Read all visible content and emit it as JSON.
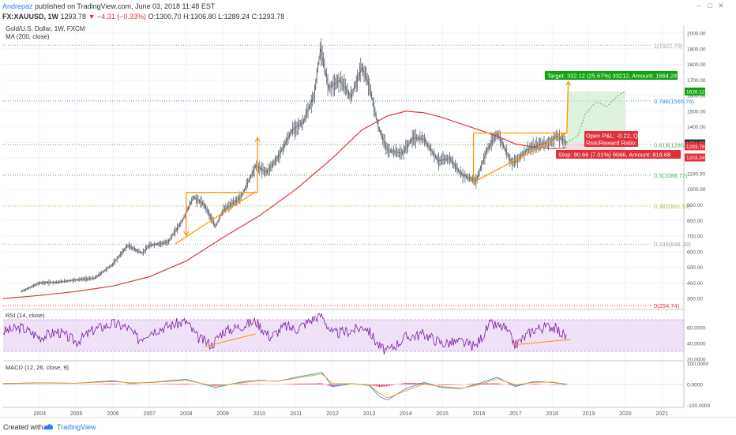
{
  "header": {
    "author": "Andrepaz",
    "published": "published on TradingView.com, June 03, 2018 11:48 EST",
    "symbol": "FX:XAUUSD, 1W",
    "last": "1293.78",
    "change": "▼ −4.31 (−0.33%)",
    "ohlc": "O:1300.70 H:1306.80 L:1289.24 C:1293.78"
  },
  "footer": {
    "created_with": "Created with",
    "brand": "TradingView"
  },
  "colors": {
    "candle_up": "#5d606b",
    "candle_down": "#5d606b",
    "ma": "#e0333c",
    "rsi": "#7b1fa2",
    "rsi_band": "#e7d4f5",
    "macd": "#2196f3",
    "signal": "#ff9800",
    "hist": "#e91e63",
    "pattern": "#ff9800",
    "target": "#12a212",
    "stop": "#e0303a",
    "fib0": "#e0303a",
    "fib236": "#9e9e9e",
    "fib382": "#b2c534",
    "fib5": "#4caf50",
    "fib618": "#4caf50",
    "fib786": "#3f88c5",
    "fib1": "#9e9e9e"
  },
  "chart_data": [
    {
      "type": "candlestick",
      "title": "Gold/U.S. Dollar, 1W, FXCM",
      "indicator": "MA (200, close)",
      "x": [
        2003.5,
        2004.0,
        2004.5,
        2005.0,
        2005.5,
        2006.0,
        2006.4,
        2006.8,
        2007.0,
        2007.5,
        2007.9,
        2008.2,
        2008.5,
        2008.8,
        2009.0,
        2009.5,
        2009.9,
        2010.2,
        2010.5,
        2010.9,
        2011.2,
        2011.5,
        2011.67,
        2011.9,
        2012.2,
        2012.5,
        2012.8,
        2013.0,
        2013.25,
        2013.5,
        2013.9,
        2014.2,
        2014.5,
        2014.9,
        2015.2,
        2015.5,
        2015.92,
        2016.2,
        2016.5,
        2016.9,
        2017.0,
        2017.3,
        2017.7,
        2017.95,
        2018.1,
        2018.3,
        2018.4
      ],
      "y": [
        345,
        400,
        405,
        420,
        430,
        520,
        640,
        590,
        640,
        660,
        800,
        950,
        900,
        760,
        860,
        950,
        1150,
        1110,
        1200,
        1380,
        1430,
        1600,
        1900,
        1650,
        1700,
        1590,
        1780,
        1670,
        1400,
        1250,
        1230,
        1330,
        1320,
        1180,
        1200,
        1100,
        1050,
        1240,
        1360,
        1170,
        1180,
        1250,
        1290,
        1300,
        1340,
        1320,
        1294
      ],
      "ma_x": [
        2003.0,
        2004.0,
        2005.0,
        2006.0,
        2007.0,
        2008.0,
        2009.0,
        2010.0,
        2011.0,
        2012.0,
        2012.8,
        2013.5,
        2014.0,
        2014.5,
        2015.0,
        2015.5,
        2016.0,
        2016.5,
        2017.0,
        2017.5,
        2018.0,
        2018.4
      ],
      "ma_y": [
        300,
        320,
        345,
        380,
        440,
        540,
        690,
        830,
        1000,
        1200,
        1380,
        1470,
        1500,
        1490,
        1460,
        1420,
        1380,
        1340,
        1290,
        1270,
        1260,
        1265
      ],
      "ylim": [
        250,
        2000
      ],
      "xlim": [
        2003.0,
        2021.6
      ],
      "yticks": [
        2000,
        1900,
        1800,
        1700,
        1600,
        1500,
        1400,
        1300,
        1200,
        1100,
        1000,
        900,
        800,
        700,
        600,
        500,
        400,
        300
      ],
      "xticks": [
        "2004",
        "2005",
        "2006",
        "2007",
        "2008",
        "2009",
        "2010",
        "2011",
        "2012",
        "2013",
        "2014",
        "2015",
        "2016",
        "2017",
        "2018",
        "2019",
        "2020",
        "2021"
      ],
      "fib_levels": [
        {
          "label": "1(1922.70)",
          "value": 1922.7,
          "color": "#9e9e9e"
        },
        {
          "label": "0.786(1565.76)",
          "value": 1565.76,
          "color": "#3f88c5"
        },
        {
          "label": "0.618(1285.54)",
          "value": 1285.54,
          "color": "#4caf50"
        },
        {
          "label": "0.5(1088.72)",
          "value": 1088.72,
          "color": "#4caf50"
        },
        {
          "label": "0.382(891.91)",
          "value": 891.91,
          "color": "#b2c534"
        },
        {
          "label": "0.236(648.38)",
          "value": 648.38,
          "color": "#9e9e9e"
        },
        {
          "label": "0(254.74)",
          "value": 254.74,
          "color": "#e0303a"
        }
      ],
      "price_tags": [
        {
          "label": "1626.12",
          "value": 1626.12,
          "color": "#12a212"
        },
        {
          "label": "1294.00",
          "value": 1294.0,
          "color": "#333333"
        },
        {
          "label": "1293.78",
          "value": 1275.0,
          "color": "#e0303a"
        },
        {
          "label": "1203.34",
          "value": 1203.34,
          "color": "#e0303a"
        }
      ],
      "annotations": {
        "target": "Target: 332.12 (25.67%) 33212, Amount: 1664.24",
        "open_pl": "Open P&L: -0.22, Qty: 2",
        "rr": "Risk/Reward Ratio: 3.66",
        "stop": "Stop: 90.66 (7.01%) 9066, Amount: 818.68"
      },
      "pattern1": {
        "top": 980,
        "bottom_left": [
          2007.7,
          650
        ],
        "apex": [
          2009.9,
          985
        ],
        "start": 2008.0,
        "end": 2009.95,
        "arrow_up": [
          2009.95,
          1330
        ],
        "arrow_down": [
          2008.0,
          705
        ]
      },
      "pattern2": {
        "top": 1360,
        "bottom_left": [
          2015.85,
          1045
        ],
        "apex": [
          2018.4,
          1360
        ],
        "start": 2015.85,
        "end": 2018.4
      },
      "trade": {
        "entry": 1294,
        "target": 1626,
        "stop": 1203,
        "x0": 2018.4,
        "x1": 2020.0
      }
    },
    {
      "type": "line",
      "title": "RSI (14, close)",
      "ylim": [
        20,
        80
      ],
      "band": [
        30,
        70
      ],
      "yticks": [
        "60.0000",
        "40.0000",
        "20.0000"
      ],
      "x": [
        2003.0,
        2003.5,
        2004.0,
        2004.5,
        2005.0,
        2005.5,
        2006.0,
        2006.4,
        2006.7,
        2007.0,
        2007.5,
        2008.0,
        2008.3,
        2008.7,
        2009.0,
        2009.5,
        2009.9,
        2010.3,
        2010.7,
        2011.0,
        2011.5,
        2011.7,
        2012.0,
        2012.5,
        2012.9,
        2013.3,
        2013.5,
        2014.0,
        2014.5,
        2015.0,
        2015.5,
        2015.9,
        2016.3,
        2016.7,
        2017.0,
        2017.5,
        2018.0,
        2018.4
      ],
      "values": [
        55,
        60,
        48,
        55,
        42,
        58,
        65,
        60,
        45,
        55,
        62,
        68,
        48,
        38,
        55,
        62,
        68,
        48,
        62,
        58,
        72,
        76,
        52,
        56,
        62,
        35,
        30,
        48,
        52,
        40,
        42,
        36,
        64,
        60,
        38,
        58,
        62,
        48
      ],
      "trend1": [
        [
          2008.5,
          36
        ],
        [
          2009.9,
          52
        ]
      ],
      "trend2": [
        [
          2016.9,
          38
        ],
        [
          2018.5,
          45
        ]
      ]
    },
    {
      "type": "line",
      "title": "MACD (12, 26, close, 9)",
      "ylim": [
        -110,
        110
      ],
      "yticks": [
        "100.0000",
        "0.0000",
        "-100.0000"
      ],
      "x": [
        2003.0,
        2004.0,
        2005.0,
        2006.0,
        2006.5,
        2007.0,
        2008.0,
        2008.8,
        2009.5,
        2010.0,
        2010.5,
        2011.0,
        2011.5,
        2011.7,
        2012.0,
        2012.5,
        2013.0,
        2013.3,
        2013.5,
        2014.0,
        2014.5,
        2015.0,
        2015.5,
        2016.0,
        2016.5,
        2017.0,
        2017.5,
        2018.0,
        2018.4
      ],
      "macd": [
        5,
        8,
        6,
        18,
        5,
        10,
        25,
        -15,
        12,
        20,
        15,
        35,
        50,
        60,
        -10,
        5,
        -5,
        -60,
        -75,
        -20,
        10,
        -15,
        -20,
        5,
        35,
        -10,
        15,
        10,
        0
      ],
      "signal": [
        4,
        7,
        6,
        14,
        8,
        9,
        20,
        -8,
        8,
        18,
        16,
        30,
        44,
        52,
        5,
        4,
        -2,
        -45,
        -65,
        -30,
        2,
        -10,
        -18,
        -2,
        28,
        -2,
        10,
        12,
        2
      ]
    }
  ]
}
